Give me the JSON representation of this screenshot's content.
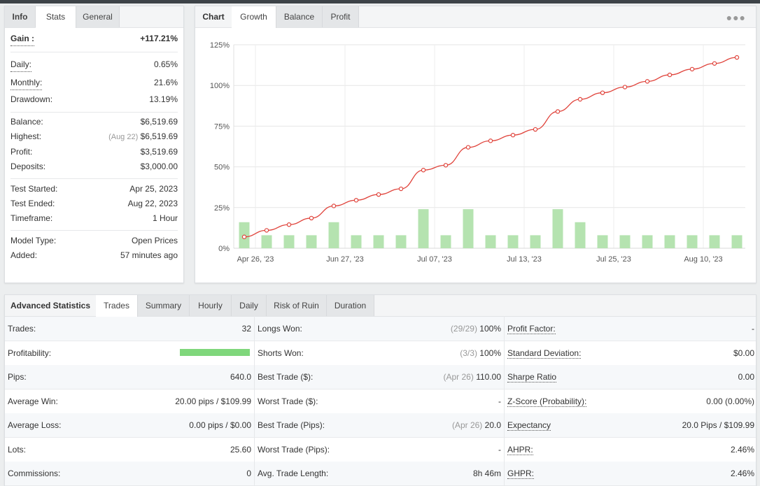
{
  "info_panel": {
    "tabs": [
      "Info",
      "Stats",
      "General"
    ],
    "active_tab": "Stats",
    "gain": {
      "label": "Gain :",
      "value": "+117.21%"
    },
    "daily": {
      "label": "Daily:",
      "value": "0.65%"
    },
    "monthly": {
      "label": "Monthly:",
      "value": "21.6%"
    },
    "drawdown": {
      "label": "Drawdown:",
      "value": "13.19%"
    },
    "balance": {
      "label": "Balance:",
      "value": "$6,519.69"
    },
    "highest": {
      "label": "Highest:",
      "date": "(Aug 22)",
      "value": "$6,519.69"
    },
    "profit": {
      "label": "Profit:",
      "value": "$3,519.69"
    },
    "deposits": {
      "label": "Deposits:",
      "value": "$3,000.00"
    },
    "test_started": {
      "label": "Test Started:",
      "value": "Apr 25, 2023"
    },
    "test_ended": {
      "label": "Test Ended:",
      "value": "Aug 22, 2023"
    },
    "timeframe": {
      "label": "Timeframe:",
      "value": "1 Hour"
    },
    "model_type": {
      "label": "Model Type:",
      "value": "Open Prices"
    },
    "added": {
      "label": "Added:",
      "value": "57 minutes ago"
    }
  },
  "chart_panel": {
    "tabs": [
      "Chart",
      "Growth",
      "Balance",
      "Profit"
    ],
    "active_tab": "Growth",
    "menu_icon": "more-dots-icon"
  },
  "chart_data": {
    "type": "line",
    "y_ticks": [
      "125%",
      "100%",
      "75%",
      "50%",
      "25%",
      "0%"
    ],
    "ylim": [
      0,
      125
    ],
    "x_tick_labels": [
      "Apr 26, '23",
      "Jun 27, '23",
      "Jul 07, '23",
      "Jul 13, '23",
      "Jul 25, '23",
      "Aug 10, '23"
    ],
    "x_tick_index": [
      0,
      4,
      8,
      12,
      16,
      20
    ],
    "growth_line": [
      7,
      11,
      14.5,
      18.5,
      26,
      29.5,
      33,
      36.5,
      48,
      51,
      62,
      66,
      69.5,
      73,
      84,
      91.5,
      95.5,
      99,
      102.5,
      106.5,
      110,
      113.5,
      117.21
    ],
    "bars": [
      16,
      8,
      8,
      8,
      16,
      8,
      8,
      8,
      24,
      8,
      24,
      8,
      8,
      8,
      24,
      16,
      8,
      8,
      8,
      8,
      8,
      8,
      8
    ],
    "grid": true,
    "line_color": "#e0443c",
    "bar_color": "#b5e3b0"
  },
  "advanced": {
    "title": "Advanced Statistics",
    "tabs": [
      "Trades",
      "Summary",
      "Hourly",
      "Daily",
      "Risk of Ruin",
      "Duration"
    ],
    "active_tab": "Trades",
    "col1": [
      {
        "label": "Trades:",
        "value": "32"
      },
      {
        "label": "Profitability:",
        "value": "",
        "progress": 1.0
      },
      {
        "label": "Pips:",
        "value": "640.0"
      },
      {
        "label": "Average Win:",
        "value": "20.00 pips / $109.99"
      },
      {
        "label": "Average Loss:",
        "value": "0.00 pips / $0.00"
      },
      {
        "label": "Lots:",
        "value": "25.60"
      },
      {
        "label": "Commissions:",
        "value": "0"
      }
    ],
    "col2": [
      {
        "label": "Longs Won:",
        "muted": "(29/29)",
        "value": "100%"
      },
      {
        "label": "Shorts Won:",
        "muted": "(3/3)",
        "value": "100%"
      },
      {
        "label": "Best Trade ($):",
        "muted": "(Apr 26)",
        "value": "110.00"
      },
      {
        "label": "Worst Trade ($):",
        "muted": "",
        "value": "-"
      },
      {
        "label": "Best Trade (Pips):",
        "muted": "(Apr 26)",
        "value": "20.0"
      },
      {
        "label": "Worst Trade (Pips):",
        "muted": "",
        "value": "-"
      },
      {
        "label": "Avg. Trade Length:",
        "muted": "",
        "value": "8h 46m"
      }
    ],
    "col3": [
      {
        "label": "Profit Factor:",
        "value": "-"
      },
      {
        "label": "Standard Deviation:",
        "value": "$0.00"
      },
      {
        "label": "Sharpe Ratio",
        "value": "0.00"
      },
      {
        "label": "Z-Score (Probability):",
        "value": "0.00 (0.00%)"
      },
      {
        "label": "Expectancy",
        "value": "20.0 Pips / $109.99"
      },
      {
        "label": "AHPR:",
        "value": "2.46%"
      },
      {
        "label": "GHPR:",
        "value": "2.46%"
      }
    ]
  }
}
